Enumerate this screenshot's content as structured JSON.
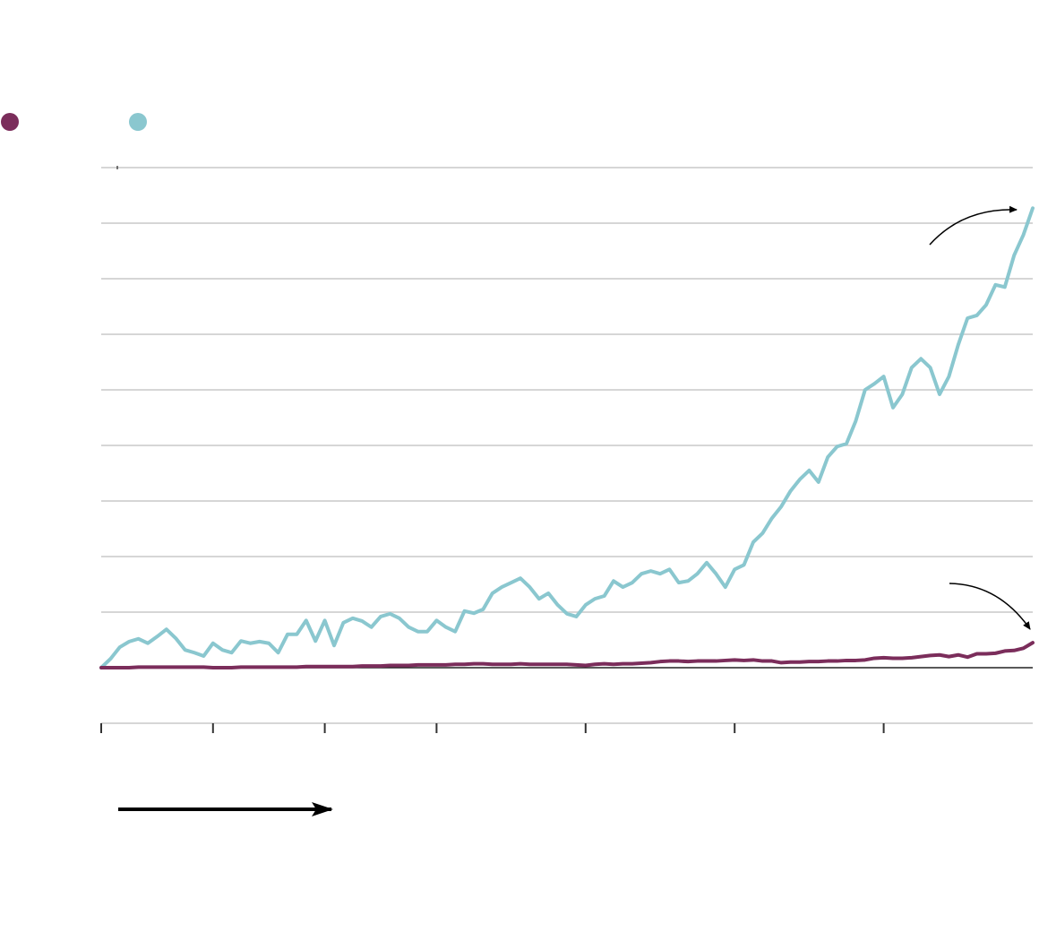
{
  "chart_data": {
    "type": "line",
    "x": [
      0,
      0.25,
      0.5,
      0.75,
      1,
      1.25,
      1.5,
      1.75,
      2,
      2.25,
      2.5,
      2.75,
      3,
      3.25,
      3.5,
      3.75,
      4,
      4.25,
      4.5,
      4.75,
      5,
      5.25,
      5.5,
      5.75,
      6,
      6.25,
      6.5,
      6.75,
      7,
      7.25,
      7.5,
      7.75,
      8,
      8.25,
      8.5,
      8.75,
      9,
      9.25,
      9.5,
      9.75,
      10,
      10.25,
      10.5,
      10.75,
      11,
      11.25,
      11.5,
      11.75,
      12,
      12.25,
      12.5,
      12.75,
      13,
      13.25,
      13.5,
      13.75,
      14,
      14.25,
      14.5,
      14.75,
      15,
      15.25,
      15.5,
      15.75,
      16,
      16.25,
      16.5,
      16.75,
      17,
      17.25,
      17.5,
      17.75,
      18,
      18.25,
      18.5,
      18.75,
      19,
      19.25,
      19.5,
      19.75,
      20,
      20.25,
      20.5,
      20.75,
      21,
      21.25,
      21.5,
      21.75,
      22,
      22.25,
      22.5,
      22.75,
      23,
      23.25,
      23.5,
      23.75,
      24,
      24.25,
      24.5,
      24.75,
      25
    ],
    "series": [
      {
        "color": "#8ac7cf",
        "values": [
          0,
          0.16,
          0.37,
          0.47,
          0.52,
          0.44,
          0.56,
          0.69,
          0.53,
          0.32,
          0.27,
          0.21,
          0.44,
          0.32,
          0.27,
          0.48,
          0.44,
          0.47,
          0.44,
          0.27,
          0.6,
          0.6,
          0.85,
          0.48,
          0.85,
          0.4,
          0.81,
          0.89,
          0.84,
          0.73,
          0.92,
          0.97,
          0.89,
          0.73,
          0.65,
          0.65,
          0.85,
          0.73,
          0.65,
          1.02,
          0.98,
          1.05,
          1.34,
          1.45,
          1.53,
          1.61,
          1.45,
          1.24,
          1.34,
          1.13,
          0.97,
          0.92,
          1.13,
          1.24,
          1.29,
          1.56,
          1.45,
          1.53,
          1.69,
          1.74,
          1.69,
          1.77,
          1.53,
          1.56,
          1.69,
          1.89,
          1.69,
          1.45,
          1.77,
          1.85,
          2.26,
          2.42,
          2.69,
          2.9,
          3.18,
          3.39,
          3.55,
          3.34,
          3.79,
          3.98,
          4.03,
          4.44,
          5.0,
          5.11,
          5.24,
          4.68,
          4.92,
          5.4,
          5.56,
          5.4,
          4.92,
          5.24,
          5.81,
          6.29,
          6.34,
          6.53,
          6.89,
          6.85,
          7.42,
          7.79,
          8.27
        ]
      },
      {
        "color": "#7b2d5b",
        "values": [
          0,
          0,
          0,
          0,
          0.01,
          0.01,
          0.01,
          0.01,
          0.01,
          0.01,
          0.01,
          0.01,
          0,
          0,
          0,
          0.01,
          0.01,
          0.01,
          0.01,
          0.01,
          0.01,
          0.01,
          0.02,
          0.02,
          0.02,
          0.02,
          0.02,
          0.02,
          0.03,
          0.03,
          0.03,
          0.04,
          0.04,
          0.04,
          0.05,
          0.05,
          0.05,
          0.05,
          0.06,
          0.06,
          0.07,
          0.07,
          0.06,
          0.06,
          0.06,
          0.07,
          0.06,
          0.06,
          0.06,
          0.06,
          0.06,
          0.05,
          0.04,
          0.06,
          0.07,
          0.06,
          0.07,
          0.07,
          0.08,
          0.09,
          0.11,
          0.12,
          0.12,
          0.11,
          0.12,
          0.12,
          0.12,
          0.13,
          0.14,
          0.13,
          0.14,
          0.12,
          0.12,
          0.09,
          0.1,
          0.1,
          0.11,
          0.11,
          0.12,
          0.12,
          0.13,
          0.13,
          0.14,
          0.17,
          0.18,
          0.17,
          0.17,
          0.18,
          0.2,
          0.22,
          0.23,
          0.2,
          0.23,
          0.19,
          0.25,
          0.25,
          0.26,
          0.3,
          0.31,
          0.35,
          0.45
        ]
      }
    ],
    "xlim": [
      0,
      25
    ],
    "xticks": [
      0,
      3,
      6,
      9,
      13,
      17,
      21
    ],
    "ylim": [
      -1,
      9
    ],
    "yticks": [
      -1,
      0,
      1,
      2,
      3,
      4,
      5,
      6,
      7,
      8,
      9
    ],
    "grid": true
  }
}
